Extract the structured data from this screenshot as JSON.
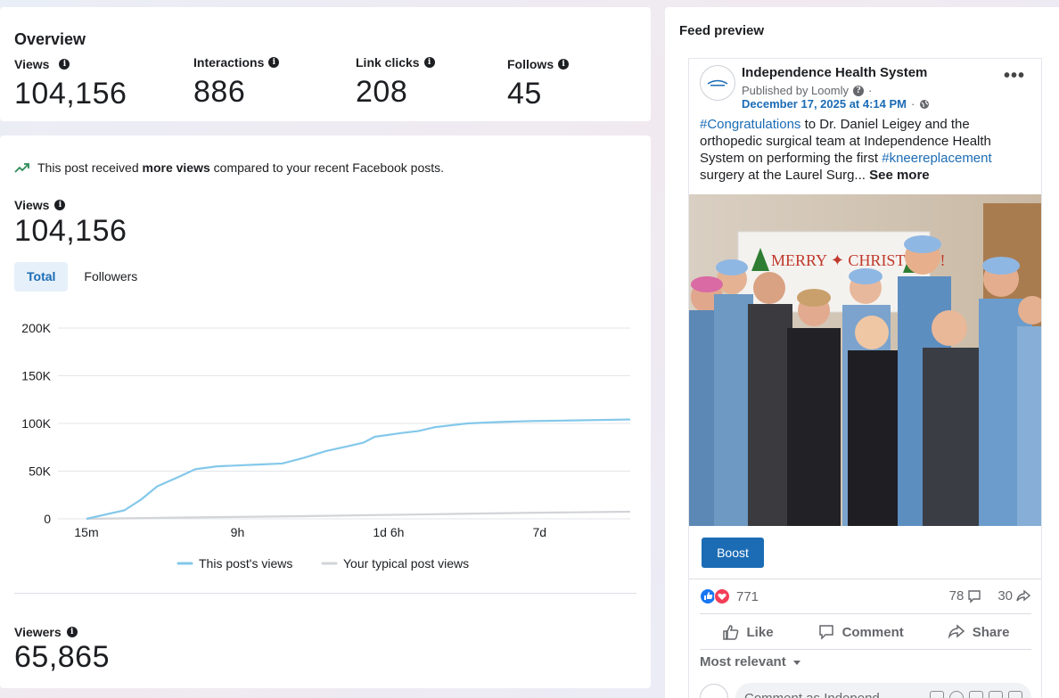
{
  "overview": {
    "title": "Overview",
    "metrics": [
      {
        "label": "Views",
        "value": "104,156"
      },
      {
        "label": "Interactions",
        "value": "886"
      },
      {
        "label": "Link clicks",
        "value": "208"
      },
      {
        "label": "Follows",
        "value": "45"
      }
    ]
  },
  "detail": {
    "notice_prefix": "This post received ",
    "notice_bold": "more views",
    "notice_suffix": " compared to your recent Facebook posts.",
    "views_label": "Views",
    "views_value": "104,156",
    "tabs": [
      {
        "label": "Total",
        "active": true
      },
      {
        "label": "Followers",
        "active": false
      }
    ],
    "viewers_label": "Viewers",
    "viewers_value": "65,865"
  },
  "chart_data": {
    "type": "line",
    "y_ticks": [
      "200K",
      "150K",
      "100K",
      "50K",
      "0"
    ],
    "ylim": [
      0,
      200000
    ],
    "x_ticks": [
      "15m",
      "9h",
      "1d 6h",
      "7d"
    ],
    "x_tick_positions": [
      0.0,
      0.2778,
      0.5556,
      0.8333
    ],
    "series": [
      {
        "name": "This post's views",
        "color": "#84c8ea",
        "x": [
          0,
          0.07,
          0.1,
          0.13,
          0.17,
          0.2,
          0.24,
          0.28,
          0.32,
          0.36,
          0.4,
          0.44,
          0.48,
          0.51,
          0.53,
          0.58,
          0.61,
          0.64,
          0.7,
          0.76,
          0.82,
          0.88,
          1.0
        ],
        "values": [
          0,
          9000,
          20000,
          34000,
          44000,
          52000,
          55000,
          56000,
          57000,
          58000,
          64000,
          71000,
          76000,
          80000,
          86000,
          90000,
          92000,
          96000,
          100000,
          101500,
          102500,
          103000,
          104156
        ]
      },
      {
        "name": "Your typical post views",
        "color": "#d2d4d8",
        "x": [
          0,
          0.2,
          0.4,
          0.6,
          0.8,
          1.0
        ],
        "values": [
          0,
          1500,
          2800,
          4500,
          6200,
          7500
        ]
      }
    ]
  },
  "feed": {
    "title": "Feed preview",
    "page_name": "Independence Health System",
    "published_by": "Published by Loomly",
    "date": "December 17, 2025 at 4:14 PM",
    "text_tag1": "#Congratulations",
    "text_mid": " to Dr. Daniel Leigey and the orthopedic surgical team at Independence Health System on performing the first ",
    "text_tag2": "#kneereplacement",
    "text_end": " surgery at the Laurel Surg... ",
    "see_more": "See more",
    "photo_banner": "MERRY ✦ CHRISTMAS!",
    "boost_label": "Boost",
    "reaction_count": "771",
    "comment_count": "78",
    "share_count": "30",
    "actions": {
      "like": "Like",
      "comment": "Comment",
      "share": "Share"
    },
    "sort_label": "Most relevant",
    "comment_placeholder": "Comment as Independ..."
  },
  "colors": {
    "accent": "#1b6cb5",
    "tab_bg": "#e6f0fa",
    "series_post": "#84c8ea",
    "series_typical": "#d2d4d8"
  }
}
